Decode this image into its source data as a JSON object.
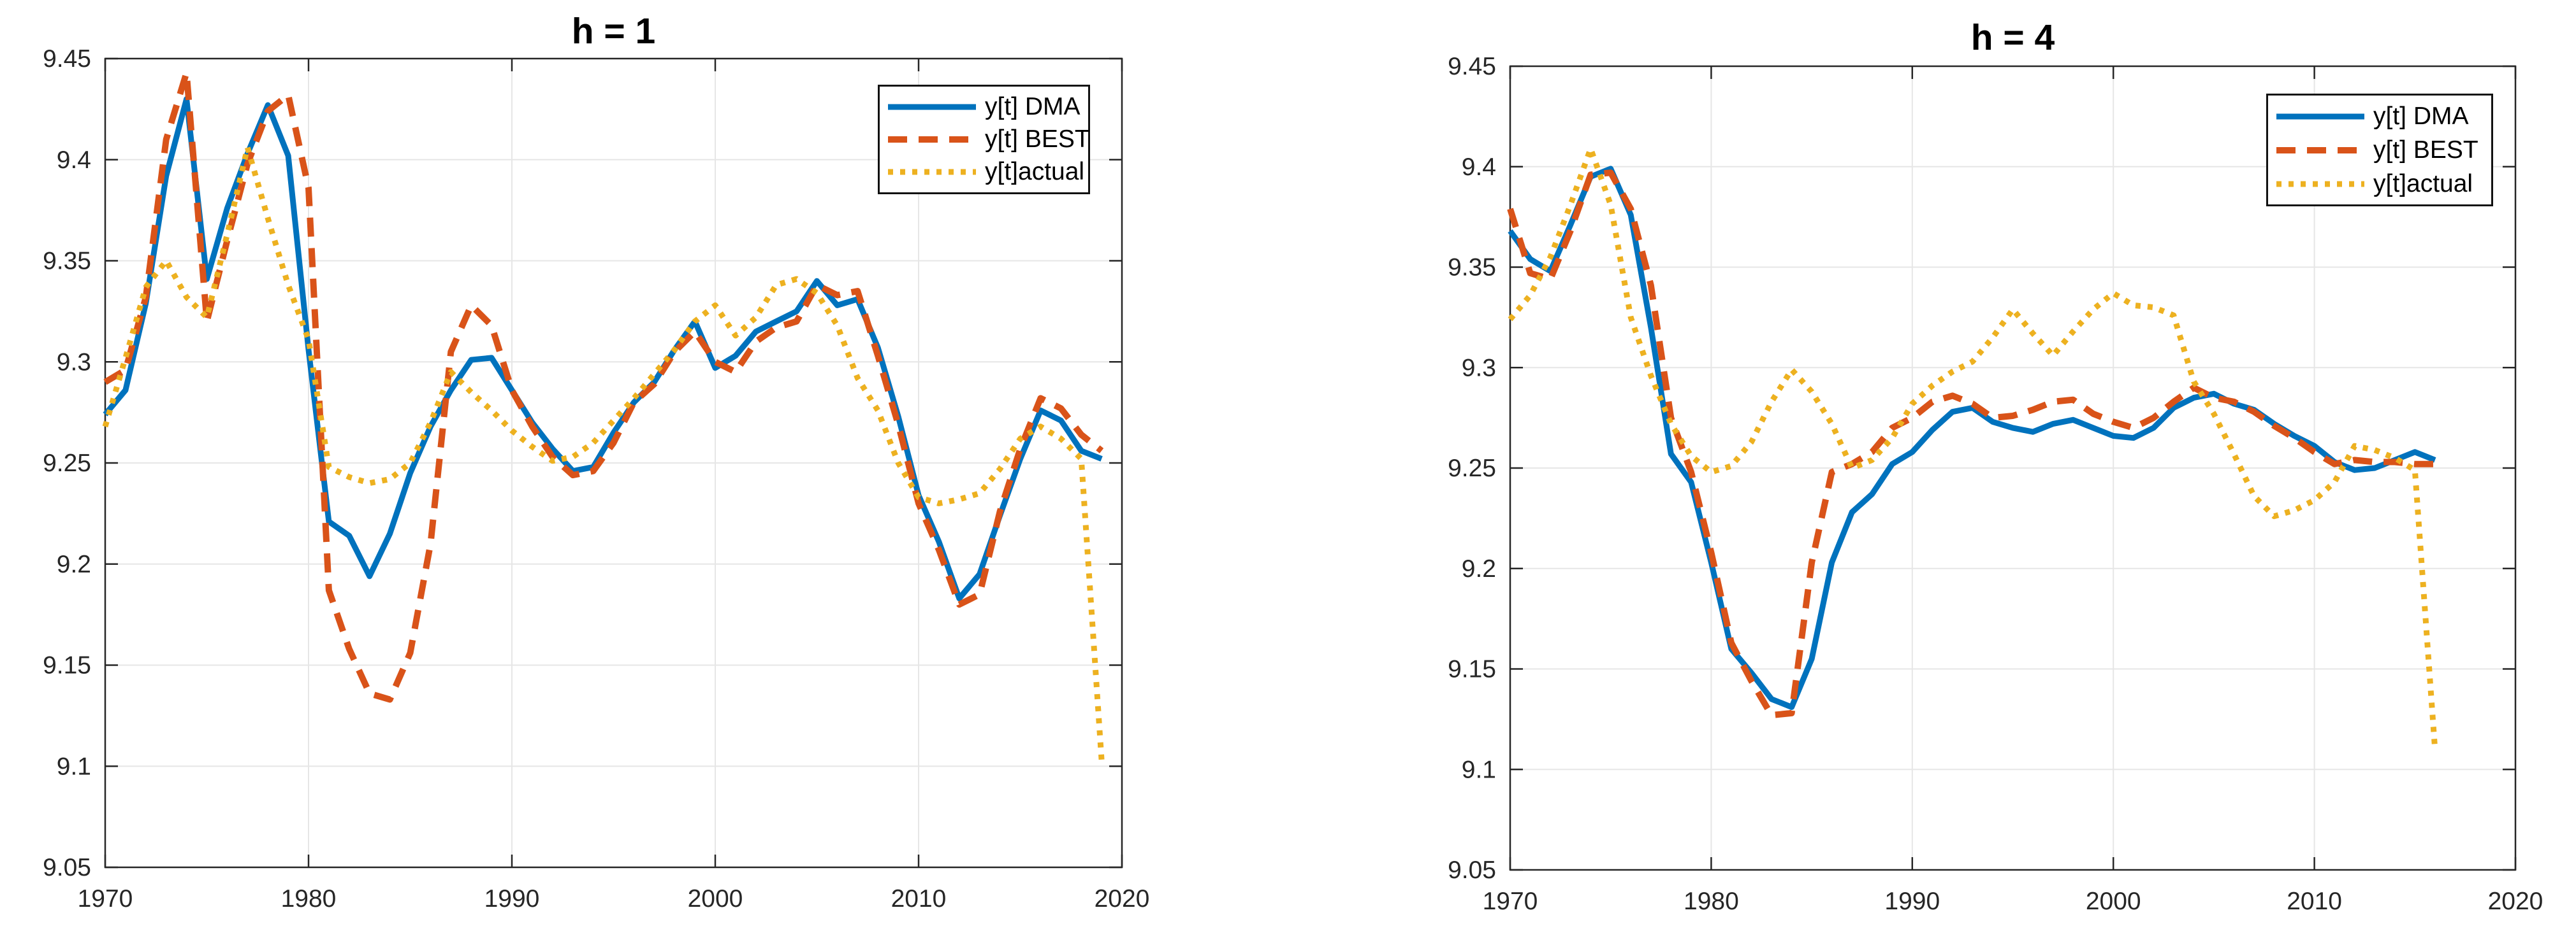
{
  "figure": {
    "background": "#ffffff",
    "axis_color": "#262626",
    "grid_color": "#e6e6e6",
    "tick_label_color": "#262626"
  },
  "chart_data": [
    {
      "type": "line",
      "title": "h = 1",
      "xlim": [
        1970,
        2020
      ],
      "ylim": [
        9.05,
        9.45
      ],
      "xticks": [
        1970,
        1980,
        1990,
        2000,
        2010,
        2020
      ],
      "xtick_labels": [
        "1970",
        "1980",
        "1990",
        "2000",
        "2010",
        "2020"
      ],
      "yticks": [
        9.05,
        9.1,
        9.15,
        9.2,
        9.25,
        9.3,
        9.35,
        9.4,
        9.45
      ],
      "ytick_labels": [
        "9.05",
        "9.1",
        "9.15",
        "9.2",
        "9.25",
        "9.3",
        "9.35",
        "9.4",
        "9.45"
      ],
      "grid": true,
      "legend_position": "northeast",
      "x": [
        1970,
        1971,
        1972,
        1973,
        1974,
        1975,
        1976,
        1977,
        1978,
        1979,
        1980,
        1981,
        1982,
        1983,
        1984,
        1985,
        1986,
        1987,
        1988,
        1989,
        1990,
        1991,
        1992,
        1993,
        1994,
        1995,
        1996,
        1997,
        1998,
        1999,
        2000,
        2001,
        2002,
        2003,
        2004,
        2005,
        2006,
        2007,
        2008,
        2009,
        2010,
        2011,
        2012,
        2013,
        2014,
        2015,
        2016,
        2017,
        2018,
        2019
      ],
      "series": [
        {
          "name": "y[t] DMA",
          "color": "#0072BD",
          "style": "solid",
          "values": [
            9.274,
            9.286,
            9.329,
            9.392,
            9.43,
            9.341,
            9.376,
            9.403,
            9.427,
            9.402,
            9.306,
            9.221,
            9.214,
            9.194,
            9.215,
            9.245,
            9.268,
            9.286,
            9.301,
            9.302,
            9.286,
            9.27,
            9.257,
            9.246,
            9.248,
            9.265,
            9.28,
            9.29,
            9.306,
            9.32,
            9.297,
            9.303,
            9.315,
            9.32,
            9.325,
            9.34,
            9.328,
            9.331,
            9.307,
            9.273,
            9.234,
            9.211,
            9.183,
            9.195,
            9.224,
            9.252,
            9.276,
            9.271,
            9.256,
            9.252
          ]
        },
        {
          "name": "y[t] BEST",
          "color": "#D95319",
          "style": "dashed",
          "values": [
            9.29,
            9.296,
            9.332,
            9.41,
            9.443,
            9.32,
            9.36,
            9.398,
            9.424,
            9.432,
            9.386,
            9.187,
            9.158,
            9.136,
            9.133,
            9.156,
            9.21,
            9.305,
            9.328,
            9.318,
            9.286,
            9.268,
            9.253,
            9.244,
            9.246,
            9.26,
            9.28,
            9.289,
            9.305,
            9.315,
            9.3,
            9.295,
            9.31,
            9.317,
            9.32,
            9.338,
            9.333,
            9.335,
            9.303,
            9.269,
            9.23,
            9.207,
            9.18,
            9.185,
            9.226,
            9.257,
            9.282,
            9.277,
            9.264,
            9.256
          ]
        },
        {
          "name": "y[t]actual",
          "color": "#EDB120",
          "style": "dotted",
          "values": [
            9.268,
            9.302,
            9.337,
            9.35,
            9.332,
            9.322,
            9.363,
            9.406,
            9.371,
            9.338,
            9.311,
            9.248,
            9.243,
            9.24,
            9.242,
            9.25,
            9.27,
            9.295,
            9.285,
            9.276,
            9.266,
            9.258,
            9.251,
            9.253,
            9.26,
            9.271,
            9.282,
            9.294,
            9.306,
            9.32,
            9.328,
            9.313,
            9.322,
            9.338,
            9.341,
            9.334,
            9.318,
            9.292,
            9.276,
            9.25,
            9.233,
            9.23,
            9.232,
            9.235,
            9.247,
            9.262,
            9.268,
            9.262,
            9.252,
            9.103
          ]
        }
      ]
    },
    {
      "type": "line",
      "title": "h = 4",
      "xlim": [
        1970,
        2020
      ],
      "ylim": [
        9.05,
        9.45
      ],
      "xticks": [
        1970,
        1980,
        1990,
        2000,
        2010,
        2020
      ],
      "xtick_labels": [
        "1970",
        "1980",
        "1990",
        "2000",
        "2010",
        "2020"
      ],
      "yticks": [
        9.05,
        9.1,
        9.15,
        9.2,
        9.25,
        9.3,
        9.35,
        9.4,
        9.45
      ],
      "ytick_labels": [
        "9.05",
        "9.1",
        "9.15",
        "9.2",
        "9.25",
        "9.3",
        "9.35",
        "9.4",
        "9.45"
      ],
      "grid": true,
      "legend_position": "northeast",
      "x": [
        1970,
        1971,
        1972,
        1973,
        1974,
        1975,
        1976,
        1977,
        1978,
        1979,
        1980,
        1981,
        1982,
        1983,
        1984,
        1985,
        1986,
        1987,
        1988,
        1989,
        1990,
        1991,
        1992,
        1993,
        1994,
        1995,
        1996,
        1997,
        1998,
        1999,
        2000,
        2001,
        2002,
        2003,
        2004,
        2005,
        2006,
        2007,
        2008,
        2009,
        2010,
        2011,
        2012,
        2013,
        2014,
        2015,
        2016
      ],
      "series": [
        {
          "name": "y[t] DMA",
          "color": "#0072BD",
          "style": "solid",
          "values": [
            9.368,
            9.354,
            9.348,
            9.371,
            9.395,
            9.399,
            9.376,
            9.32,
            9.257,
            9.243,
            9.203,
            9.16,
            9.148,
            9.135,
            9.131,
            9.155,
            9.203,
            9.228,
            9.237,
            9.252,
            9.258,
            9.269,
            9.278,
            9.28,
            9.273,
            9.27,
            9.268,
            9.272,
            9.274,
            9.27,
            9.266,
            9.265,
            9.27,
            9.28,
            9.285,
            9.287,
            9.282,
            9.279,
            9.272,
            9.266,
            9.261,
            9.253,
            9.249,
            9.25,
            9.254,
            9.258,
            9.254
          ]
        },
        {
          "name": "y[t] BEST",
          "color": "#D95319",
          "style": "dashed",
          "values": [
            9.379,
            9.347,
            9.344,
            9.368,
            9.396,
            9.397,
            9.379,
            9.341,
            9.275,
            9.248,
            9.208,
            9.163,
            9.144,
            9.127,
            9.128,
            9.203,
            9.248,
            9.252,
            9.258,
            9.27,
            9.275,
            9.283,
            9.286,
            9.282,
            9.275,
            9.276,
            9.279,
            9.283,
            9.284,
            9.277,
            9.273,
            9.27,
            9.275,
            9.283,
            9.29,
            9.285,
            9.283,
            9.278,
            9.271,
            9.265,
            9.258,
            9.252,
            9.254,
            9.253,
            9.253,
            9.252,
            9.252
          ]
        },
        {
          "name": "y[t]actual",
          "color": "#EDB120",
          "style": "dotted",
          "values": [
            9.324,
            9.336,
            9.355,
            9.381,
            9.409,
            9.381,
            9.325,
            9.296,
            9.272,
            9.256,
            9.248,
            9.251,
            9.263,
            9.283,
            9.299,
            9.288,
            9.272,
            9.25,
            9.254,
            9.265,
            9.282,
            9.291,
            9.298,
            9.303,
            9.315,
            9.329,
            9.317,
            9.306,
            9.318,
            9.329,
            9.337,
            9.331,
            9.33,
            9.326,
            9.293,
            9.277,
            9.257,
            9.236,
            9.226,
            9.229,
            9.234,
            9.243,
            9.261,
            9.259,
            9.255,
            9.249,
            9.11
          ]
        }
      ]
    }
  ]
}
